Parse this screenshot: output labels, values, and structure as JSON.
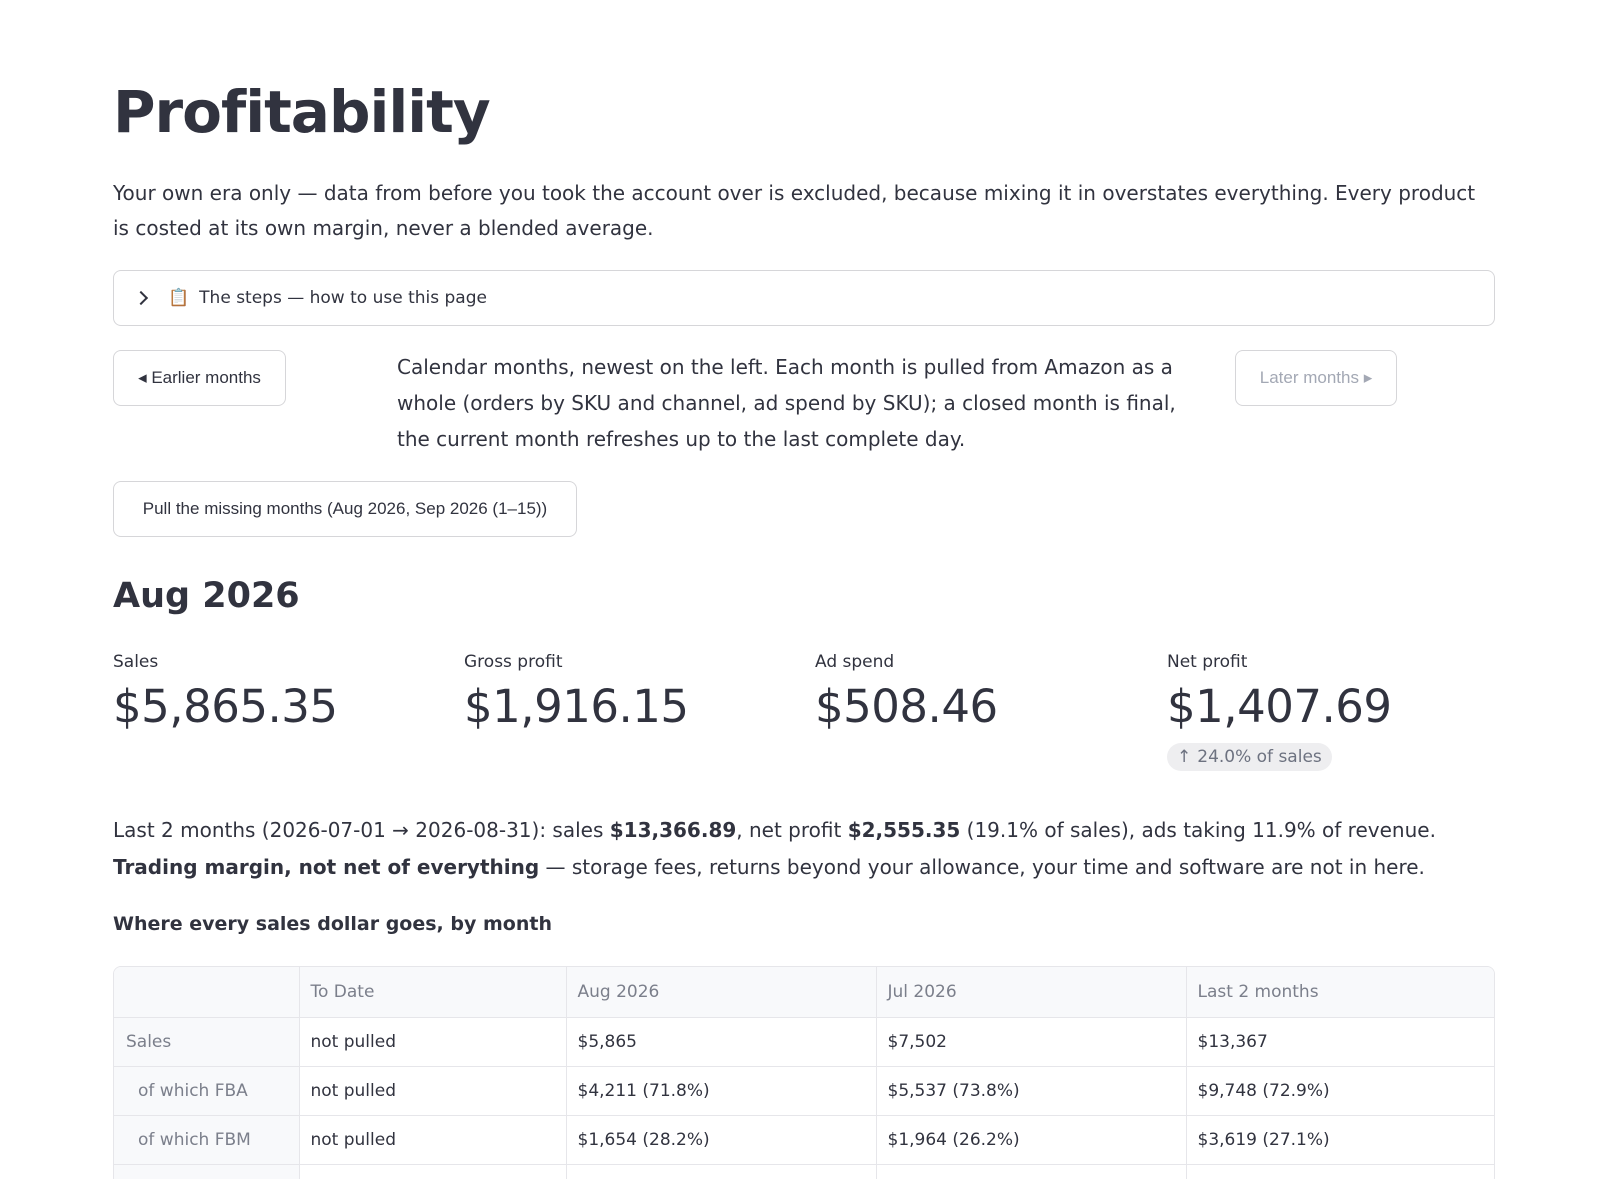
{
  "page": {
    "title": "Profitability",
    "intro": "Your own era only — data from before you took the account over is excluded, because mixing it in overstates everything. Every product is costed at its own margin, never a blended average."
  },
  "expander": {
    "icon": "clipboard-icon",
    "label": "The steps — how to use this page"
  },
  "nav": {
    "earlier_label": "◂ Earlier months",
    "later_label": "Later months ▸",
    "note": "Calendar months, newest on the left. Each month is pulled from Amazon as a whole (orders by SKU and channel, ad spend by SKU); a closed month is final, the current month refreshes up to the last complete day.",
    "pull_label": "Pull the missing months (Aug 2026, Sep 2026 (1–15))"
  },
  "month": {
    "heading": "Aug 2026",
    "metrics": [
      {
        "label": "Sales",
        "value": "$5,865.35"
      },
      {
        "label": "Gross profit",
        "value": "$1,916.15"
      },
      {
        "label": "Ad spend",
        "value": "$508.46"
      },
      {
        "label": "Net profit",
        "value": "$1,407.69",
        "delta": "24.0% of sales"
      }
    ]
  },
  "summary": {
    "p1": "Last 2 months (2026-07-01 → 2026-08-31): sales ",
    "sales": "$13,366.89",
    "p2": ", net profit ",
    "net": "$2,555.35",
    "p3": " (19.1% of sales), ads taking 11.9% of revenue. ",
    "bold": "Trading margin, not net of everything",
    "p4": " — storage fees, returns beyond your allowance, your time and software are not in here."
  },
  "table": {
    "title": "Where every sales dollar goes, by month",
    "headers": [
      "",
      "To Date",
      "Aug 2026",
      "Jul 2026",
      "Last 2 months"
    ],
    "rows": [
      {
        "label": "Sales",
        "cells": [
          "not pulled",
          "$5,865",
          "$7,502",
          "$13,367"
        ]
      },
      {
        "label": "of which FBA",
        "cells": [
          "not pulled",
          "$4,211  (71.8%)",
          "$5,537  (73.8%)",
          "$9,748  (72.9%)"
        ]
      },
      {
        "label": "of which FBM",
        "cells": [
          "not pulled",
          "$1,654  (28.2%)",
          "$1,964  (26.2%)",
          "$3,619  (27.1%)"
        ]
      }
    ]
  }
}
